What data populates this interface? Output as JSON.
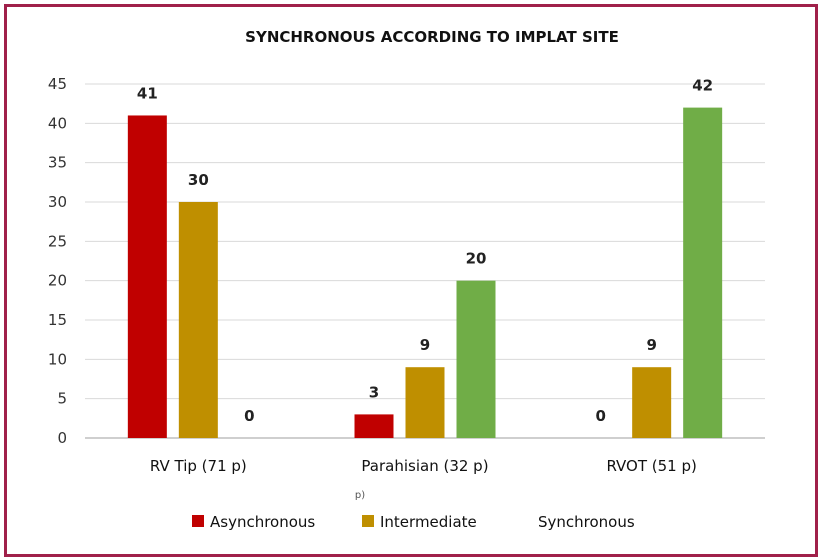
{
  "chart_data": {
    "type": "bar",
    "title": "SYNCHRONOUS ACCORDING TO IMPLAT SITE",
    "categories": [
      "RV Tip (71 p)",
      "Parahisian (32 p)",
      "RVOT (51 p)"
    ],
    "series": [
      {
        "name": "Asynchronous",
        "color": "#c00000",
        "values": [
          41,
          3,
          0
        ]
      },
      {
        "name": "Intermediate",
        "color": "#bf8f00",
        "values": [
          30,
          9,
          9
        ]
      },
      {
        "name": "Synchronous",
        "color": "#70ad47",
        "values": [
          0,
          20,
          42
        ]
      }
    ],
    "ylim": [
      0,
      45
    ],
    "yticks": [
      0,
      5,
      10,
      15,
      20,
      25,
      30,
      35,
      40,
      45
    ],
    "grid": true,
    "legend_position": "bottom",
    "stray_mark": "p)"
  }
}
